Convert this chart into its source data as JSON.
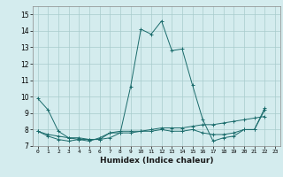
{
  "title": "",
  "xlabel": "Humidex (Indice chaleur)",
  "ylabel": "",
  "bg_color": "#d4ecee",
  "grid_color": "#a8cccc",
  "line_color": "#1a6b6b",
  "xlim": [
    -0.5,
    23.5
  ],
  "ylim": [
    7.0,
    15.5
  ],
  "yticks": [
    7,
    8,
    9,
    10,
    11,
    12,
    13,
    14,
    15
  ],
  "xticks": [
    0,
    1,
    2,
    3,
    4,
    5,
    6,
    7,
    8,
    9,
    10,
    11,
    12,
    13,
    14,
    15,
    16,
    17,
    18,
    19,
    20,
    21,
    22,
    23
  ],
  "series": [
    [
      9.9,
      9.2,
      7.9,
      7.5,
      7.4,
      7.4,
      7.4,
      7.5,
      7.8,
      10.6,
      14.1,
      13.8,
      14.6,
      12.8,
      12.9,
      10.7,
      8.6,
      7.3,
      7.5,
      7.6,
      8.0,
      8.0,
      9.2
    ],
    [
      7.9,
      7.6,
      7.4,
      7.3,
      7.4,
      7.3,
      7.5,
      7.8,
      7.8,
      7.8,
      7.9,
      7.9,
      8.0,
      7.9,
      7.9,
      8.0,
      7.8,
      7.7,
      7.7,
      7.8,
      8.0,
      8.0,
      9.3
    ],
    [
      7.9,
      7.7,
      7.6,
      7.5,
      7.5,
      7.4,
      7.4,
      7.8,
      7.9,
      7.9,
      7.9,
      8.0,
      8.1,
      8.1,
      8.1,
      8.2,
      8.3,
      8.3,
      8.4,
      8.5,
      8.6,
      8.7,
      8.8
    ]
  ]
}
